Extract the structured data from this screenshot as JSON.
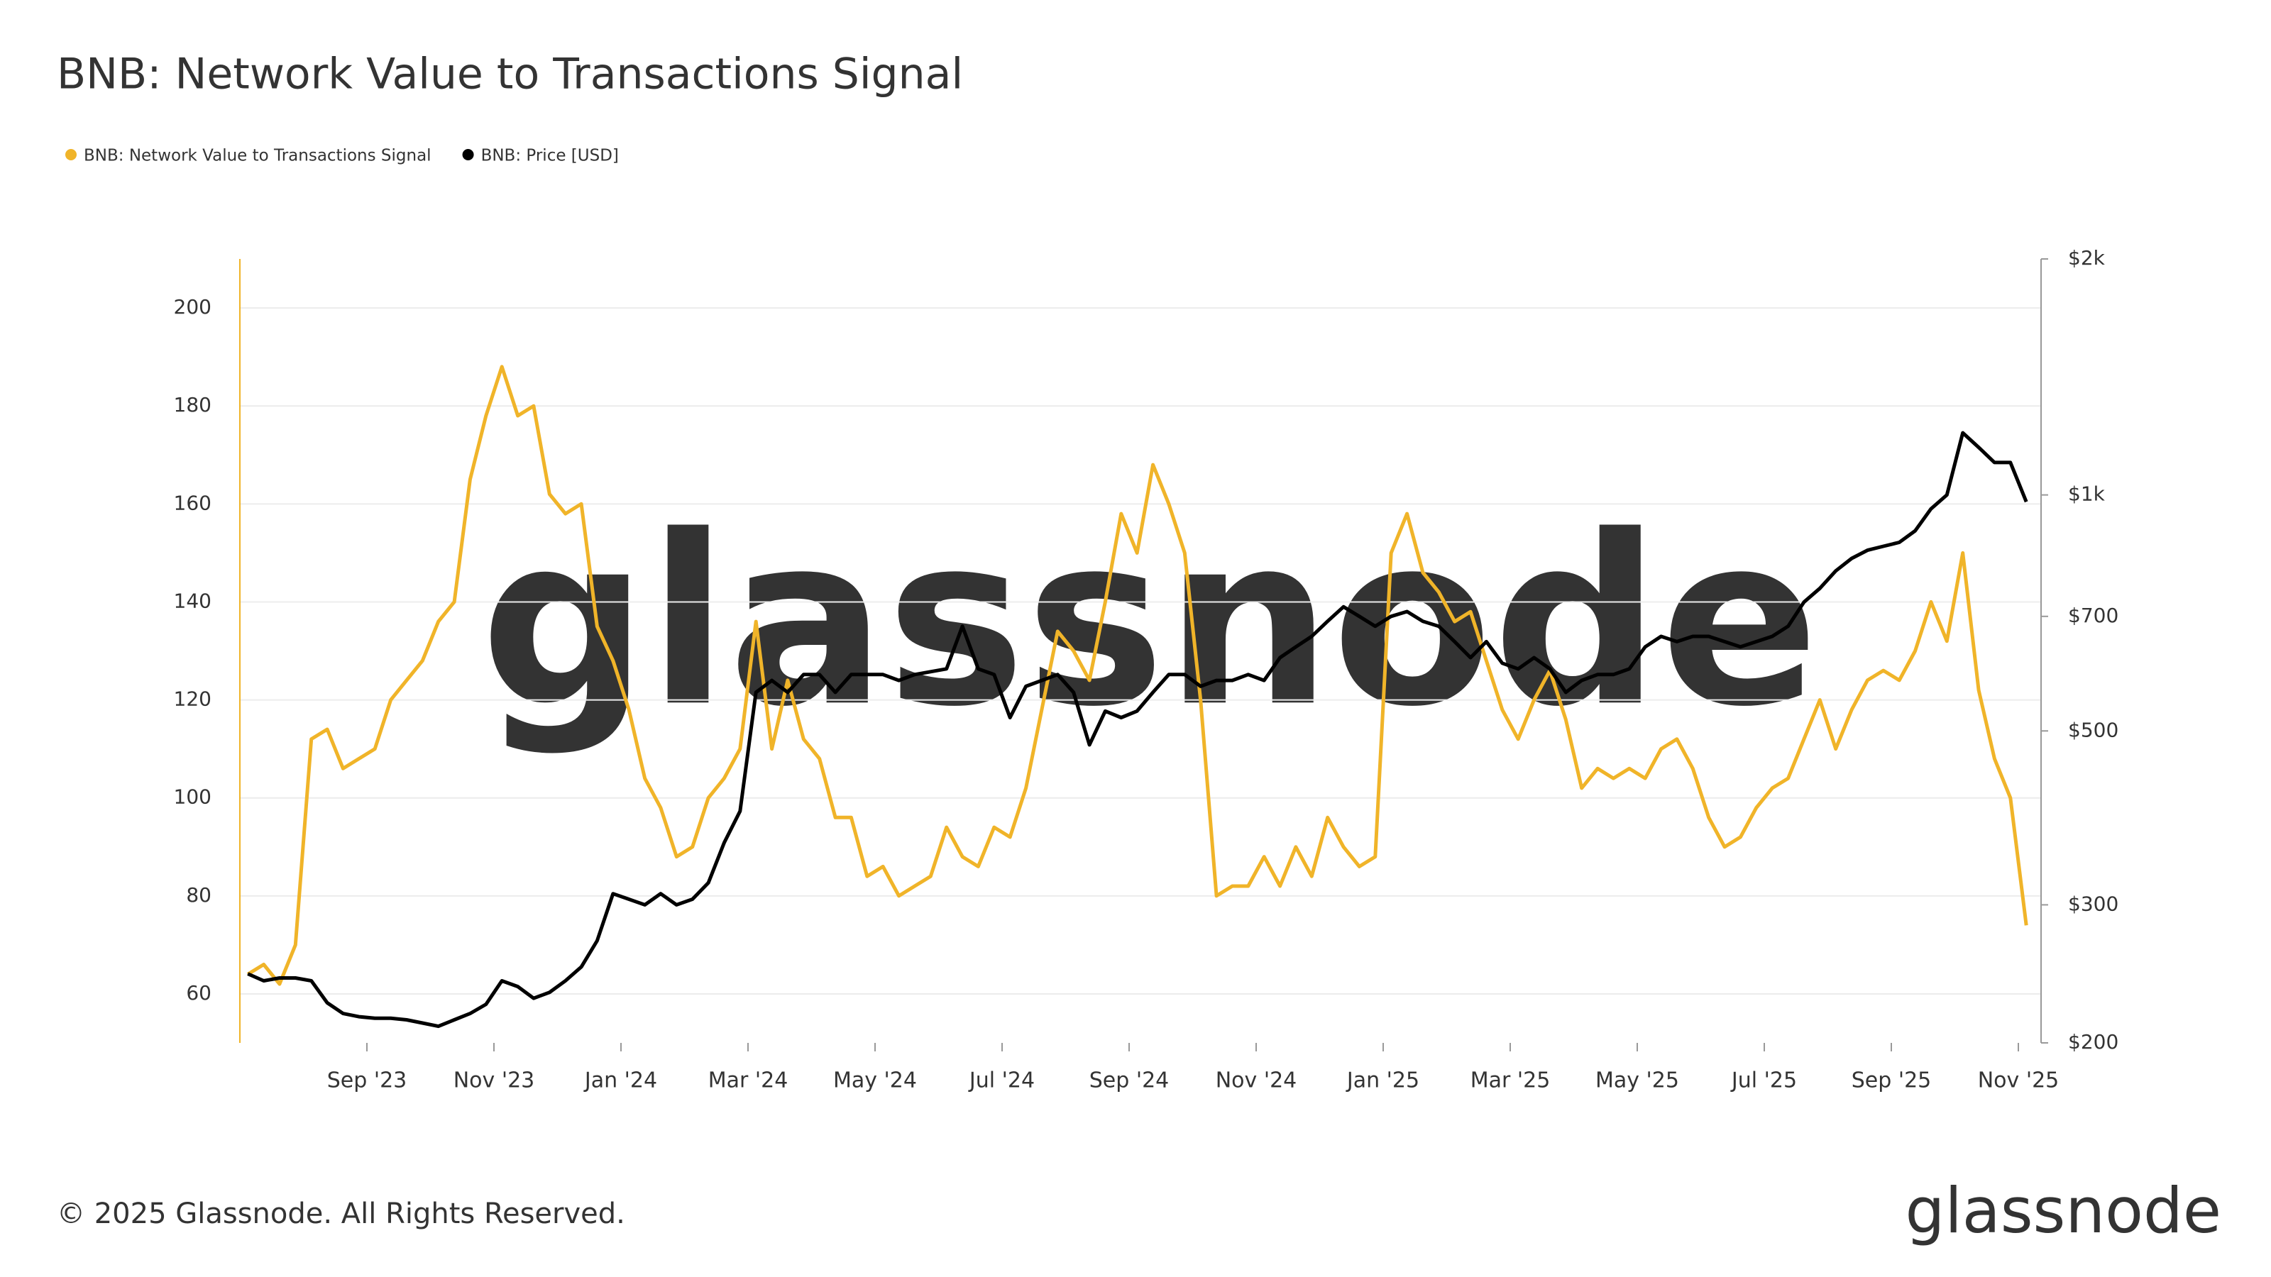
{
  "chart_data": {
    "type": "line",
    "title": "BNB: Network Value to Transactions Signal",
    "watermark": "glassnode",
    "footer": "© 2025 Glassnode. All Rights Reserved.",
    "logo": "glassnode",
    "x": [
      "2023-07",
      "2023-07",
      "2023-07",
      "2023-07",
      "2023-08",
      "2023-08",
      "2023-08",
      "2023-08",
      "2023-09",
      "2023-09",
      "2023-09",
      "2023-09",
      "2023-10",
      "2023-10",
      "2023-10",
      "2023-10",
      "2023-11",
      "2023-11",
      "2023-11",
      "2023-11",
      "2023-12",
      "2023-12",
      "2023-12",
      "2023-12",
      "2024-01",
      "2024-01",
      "2024-01",
      "2024-01",
      "2024-02",
      "2024-02",
      "2024-02",
      "2024-02",
      "2024-03",
      "2024-03",
      "2024-03",
      "2024-03",
      "2024-04",
      "2024-04",
      "2024-04",
      "2024-04",
      "2024-05",
      "2024-05",
      "2024-05",
      "2024-05",
      "2024-06",
      "2024-06",
      "2024-06",
      "2024-06",
      "2024-07",
      "2024-07",
      "2024-07",
      "2024-07",
      "2024-08",
      "2024-08",
      "2024-08",
      "2024-08",
      "2024-09",
      "2024-09",
      "2024-09",
      "2024-09",
      "2024-10",
      "2024-10",
      "2024-10",
      "2024-10",
      "2024-11",
      "2024-11",
      "2024-11",
      "2024-11",
      "2024-12",
      "2024-12",
      "2024-12",
      "2024-12",
      "2025-01",
      "2025-01",
      "2025-01",
      "2025-01",
      "2025-02",
      "2025-02",
      "2025-02",
      "2025-02",
      "2025-03",
      "2025-03",
      "2025-03",
      "2025-03",
      "2025-04",
      "2025-04",
      "2025-04",
      "2025-04",
      "2025-05",
      "2025-05",
      "2025-05",
      "2025-05",
      "2025-06",
      "2025-06",
      "2025-06",
      "2025-06",
      "2025-07",
      "2025-07",
      "2025-07",
      "2025-07",
      "2025-08",
      "2025-08",
      "2025-08",
      "2025-08",
      "2025-09",
      "2025-09",
      "2025-09",
      "2025-09",
      "2025-10",
      "2025-10",
      "2025-10",
      "2025-10",
      "2025-11"
    ],
    "xticks": [
      {
        "value": "2023-09",
        "label": "Sep '23"
      },
      {
        "value": "2023-11",
        "label": "Nov '23"
      },
      {
        "value": "2024-01",
        "label": "Jan '24"
      },
      {
        "value": "2024-03",
        "label": "Mar '24"
      },
      {
        "value": "2024-05",
        "label": "May '24"
      },
      {
        "value": "2024-07",
        "label": "Jul '24"
      },
      {
        "value": "2024-09",
        "label": "Sep '24"
      },
      {
        "value": "2024-11",
        "label": "Nov '24"
      },
      {
        "value": "2025-01",
        "label": "Jan '25"
      },
      {
        "value": "2025-03",
        "label": "Mar '25"
      },
      {
        "value": "2025-05",
        "label": "May '25"
      },
      {
        "value": "2025-07",
        "label": "Jul '25"
      },
      {
        "value": "2025-09",
        "label": "Sep '25"
      },
      {
        "value": "2025-11",
        "label": "Nov '25"
      }
    ],
    "ylim": [
      50,
      210
    ],
    "yticks": [
      60,
      80,
      100,
      120,
      140,
      160,
      180,
      200
    ],
    "y2lim": [
      200,
      2000
    ],
    "y2scale": "log",
    "y2ticks": [
      {
        "value": 200,
        "label": "$200"
      },
      {
        "value": 300,
        "label": "$300"
      },
      {
        "value": 500,
        "label": "$500"
      },
      {
        "value": 700,
        "label": "$700"
      },
      {
        "value": 1000,
        "label": "$1k"
      },
      {
        "value": 2000,
        "label": "$2k"
      }
    ],
    "grid": true,
    "legend": "top-left",
    "series": [
      {
        "name": "BNB: Network Value to Transactions Signal",
        "color": "#f0b429",
        "axis": "y",
        "values": [
          64,
          66,
          62,
          70,
          112,
          114,
          106,
          108,
          110,
          120,
          124,
          128,
          136,
          140,
          165,
          178,
          188,
          178,
          180,
          162,
          158,
          160,
          135,
          128,
          118,
          104,
          98,
          88,
          90,
          100,
          104,
          110,
          136,
          110,
          124,
          112,
          108,
          96,
          96,
          84,
          86,
          80,
          82,
          84,
          94,
          88,
          86,
          94,
          92,
          102,
          118,
          134,
          130,
          124,
          140,
          158,
          150,
          168,
          160,
          150,
          120,
          80,
          82,
          82,
          88,
          82,
          90,
          84,
          96,
          90,
          86,
          88,
          150,
          158,
          146,
          142,
          136,
          138,
          128,
          118,
          112,
          120,
          126,
          116,
          102,
          106,
          104,
          106,
          104,
          110,
          112,
          106,
          96,
          90,
          92,
          98,
          102,
          104,
          112,
          120,
          110,
          118,
          124,
          126,
          124,
          130,
          140,
          132,
          150,
          122,
          108,
          100,
          74
        ]
      },
      {
        "name": "BNB: Price [USD]",
        "color": "#000000",
        "axis": "y2",
        "values": [
          245,
          240,
          242,
          242,
          240,
          225,
          218,
          216,
          215,
          215,
          214,
          212,
          210,
          214,
          218,
          224,
          240,
          236,
          228,
          232,
          240,
          250,
          270,
          310,
          305,
          300,
          310,
          300,
          305,
          320,
          360,
          395,
          560,
          580,
          560,
          590,
          590,
          560,
          590,
          590,
          590,
          580,
          590,
          595,
          600,
          680,
          600,
          590,
          520,
          570,
          580,
          590,
          560,
          480,
          530,
          520,
          530,
          560,
          590,
          590,
          570,
          580,
          580,
          590,
          580,
          620,
          640,
          660,
          690,
          720,
          700,
          680,
          700,
          710,
          690,
          680,
          650,
          620,
          650,
          610,
          600,
          620,
          600,
          560,
          580,
          590,
          590,
          600,
          640,
          660,
          650,
          660,
          660,
          650,
          640,
          650,
          660,
          680,
          730,
          760,
          800,
          830,
          850,
          860,
          870,
          900,
          960,
          1000,
          1200,
          1150,
          1100,
          1100,
          980
        ]
      }
    ]
  }
}
